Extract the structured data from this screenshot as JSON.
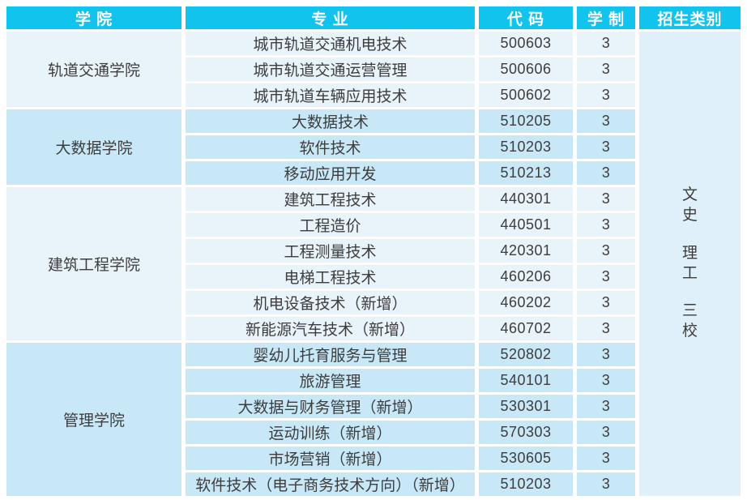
{
  "header": {
    "college": "学 院",
    "major": "专 业",
    "code": "代 码",
    "duration": "学 制",
    "category": "招生类别"
  },
  "colleges": [
    {
      "name": "轨道交通学院",
      "majors": [
        {
          "major": "城市轨道交通机电技术",
          "code": "500603",
          "duration": "3"
        },
        {
          "major": "城市轨道交通运营管理",
          "code": "500606",
          "duration": "3"
        },
        {
          "major": "城市轨道车辆应用技术",
          "code": "500602",
          "duration": "3"
        }
      ]
    },
    {
      "name": "大数据学院",
      "majors": [
        {
          "major": "大数据技术",
          "code": "510205",
          "duration": "3"
        },
        {
          "major": "软件技术",
          "code": "510203",
          "duration": "3"
        },
        {
          "major": "移动应用开发",
          "code": "510213",
          "duration": "3"
        }
      ]
    },
    {
      "name": "建筑工程学院",
      "majors": [
        {
          "major": "建筑工程技术",
          "code": "440301",
          "duration": "3"
        },
        {
          "major": "工程造价",
          "code": "440501",
          "duration": "3"
        },
        {
          "major": "工程测量技术",
          "code": "420301",
          "duration": "3"
        },
        {
          "major": "电梯工程技术",
          "code": "460206",
          "duration": "3"
        },
        {
          "major": "机电设备技术（新增）",
          "code": "460202",
          "duration": "3"
        },
        {
          "major": "新能源汽车技术（新增）",
          "code": "460702",
          "duration": "3"
        }
      ]
    },
    {
      "name": "管理学院",
      "majors": [
        {
          "major": "婴幼儿托育服务与管理",
          "code": "520802",
          "duration": "3"
        },
        {
          "major": "旅游管理",
          "code": "540101",
          "duration": "3"
        },
        {
          "major": "大数据与财务管理（新增）",
          "code": "530301",
          "duration": "3"
        },
        {
          "major": "运动训练（新增）",
          "code": "570303",
          "duration": "3"
        },
        {
          "major": "市场营销（新增）",
          "code": "530605",
          "duration": "3"
        },
        {
          "major": "软件技术（电子商务技术方向）（新增）",
          "code": "510203",
          "duration": "3"
        }
      ]
    }
  ],
  "categories": [
    "文史",
    "理工",
    "三校"
  ],
  "colors": {
    "header_bg": "#12C3EE",
    "header_text": "#FFFFFF",
    "group_light_bg": "#E9F3FA",
    "group_blue_bg": "#C9E8F7",
    "category_bg": "#DFF0FB",
    "body_text": "#3D3D3D"
  }
}
